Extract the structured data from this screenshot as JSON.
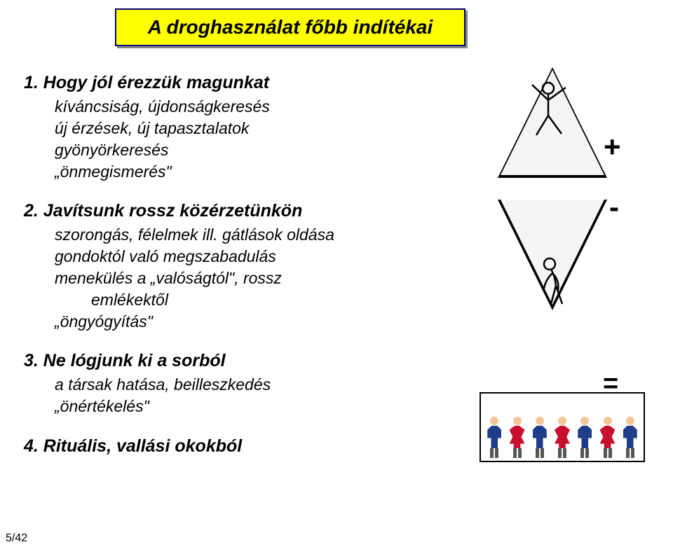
{
  "title": "A droghasználat főbb indítékai",
  "items": [
    {
      "head": "1. Hogy jól érezzük magunkat",
      "subs": [
        {
          "t": "kíváncsiság, újdonságkeresés",
          "cls": "item-sub"
        },
        {
          "t": "új érzések, új tapasztalatok",
          "cls": "item-sub"
        },
        {
          "t": "gyönyörkeresés",
          "cls": "item-sub"
        },
        {
          "t": "„önmegismerés\"",
          "cls": "item-sub"
        }
      ]
    },
    {
      "head": "2. Javítsunk rossz közérzetünkön",
      "subs": [
        {
          "t": "szorongás, félelmek ill. gátlások oldása",
          "cls": "item-sub"
        },
        {
          "t": "gondoktól való megszabadulás",
          "cls": "item-sub"
        },
        {
          "t": "menekülés a „valóságtól\", rossz",
          "cls": "item-sub"
        },
        {
          "t": "emlékektől",
          "cls": "item-sub indent2"
        },
        {
          "t": "„öngyógyítás\"",
          "cls": "item-sub"
        }
      ]
    },
    {
      "head": "3. Ne lógjunk ki a sorból",
      "subs": [
        {
          "t": "a társak hatása, beilleszkedés",
          "cls": "item-sub"
        },
        {
          "t": "„önértékelés\"",
          "cls": "item-sub"
        }
      ]
    },
    {
      "head": "4. Rituális, vallási okokból",
      "subs": []
    }
  ],
  "symbols": {
    "plus": "+",
    "minus": "-",
    "equals": "="
  },
  "page": "5/42",
  "people": [
    {
      "head": "#f2c79a",
      "body": "#1e3e8a",
      "type": "m",
      "leg": "#555"
    },
    {
      "head": "#f2c79a",
      "body": "#c8102e",
      "type": "f",
      "leg": "#555"
    },
    {
      "head": "#f2c79a",
      "body": "#1e3e8a",
      "type": "m",
      "leg": "#555"
    },
    {
      "head": "#f2c79a",
      "body": "#c8102e",
      "type": "f",
      "leg": "#555"
    },
    {
      "head": "#f2c79a",
      "body": "#1e3e8a",
      "type": "m",
      "leg": "#555"
    },
    {
      "head": "#f2c79a",
      "body": "#c8102e",
      "type": "f",
      "leg": "#555"
    },
    {
      "head": "#f2c79a",
      "body": "#1e3e8a",
      "type": "m",
      "leg": "#555"
    }
  ],
  "stick_color": "#000"
}
